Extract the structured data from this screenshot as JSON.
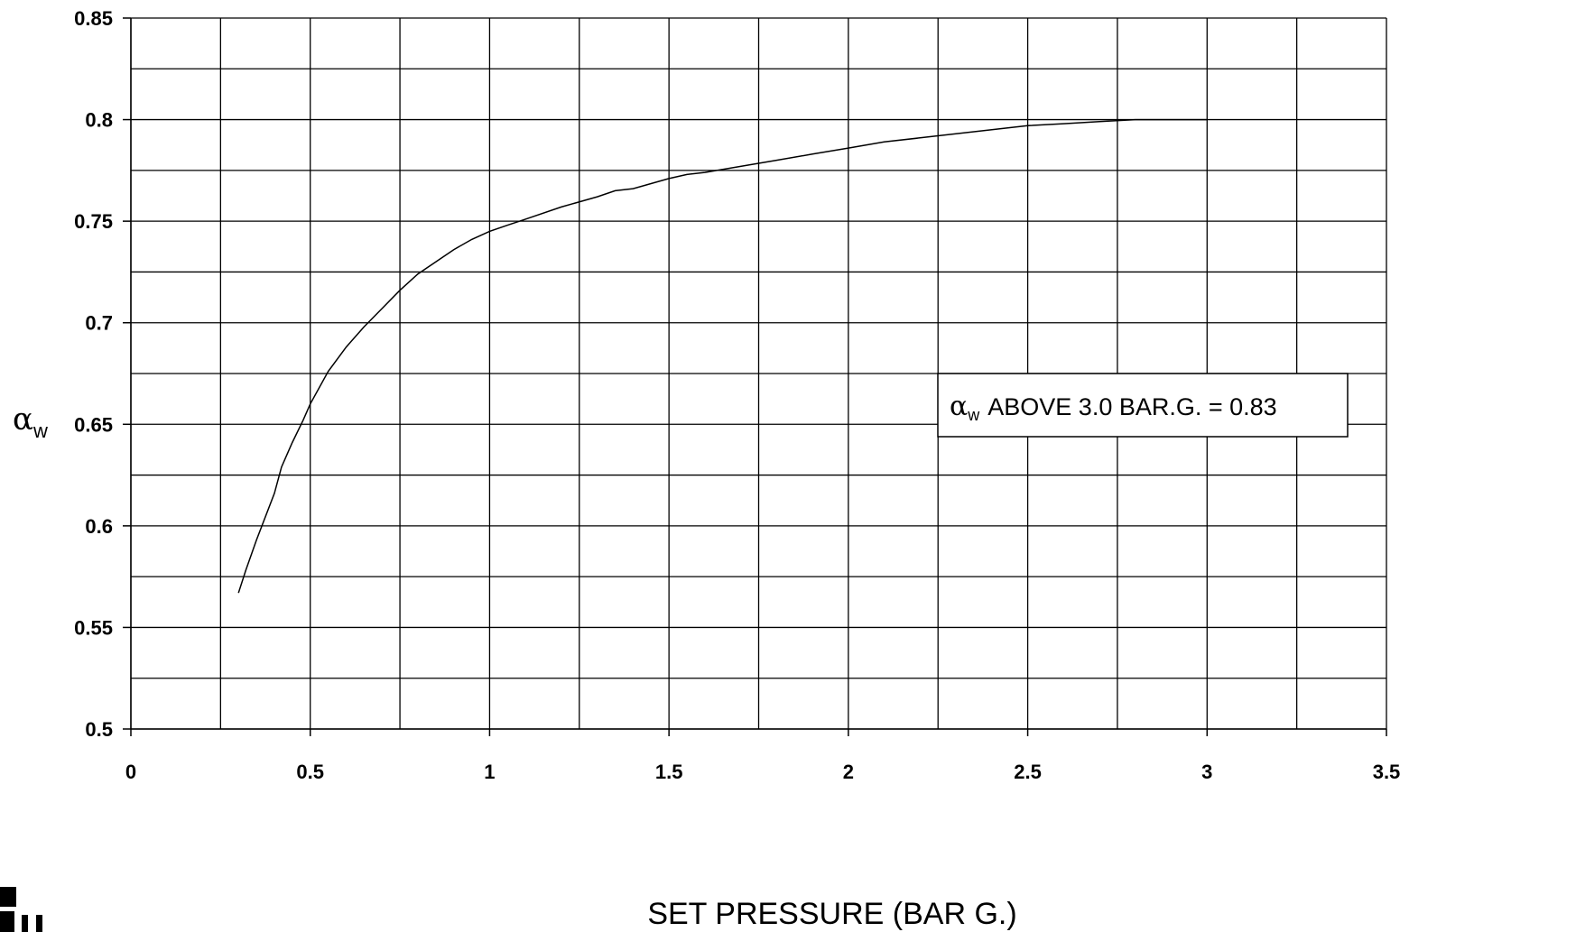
{
  "chart_data": {
    "type": "line",
    "xlabel": "SET PRESSURE (BAR G.)",
    "ylabel": {
      "symbol": "α",
      "subscript": "w"
    },
    "xlim": [
      0,
      3.5
    ],
    "ylim": [
      0.5,
      0.85
    ],
    "x_ticks": [
      0,
      0.5,
      1,
      1.5,
      2,
      2.5,
      3,
      3.5
    ],
    "x_tick_labels": [
      "0",
      "0.5",
      "1",
      "1.5",
      "2",
      "2.5",
      "3",
      "3.5"
    ],
    "x_grid_step": 0.25,
    "y_ticks": [
      0.5,
      0.55,
      0.6,
      0.65,
      0.7,
      0.75,
      0.8,
      0.85
    ],
    "y_tick_labels": [
      "0.5",
      "0.55",
      "0.6",
      "0.65",
      "0.7",
      "0.75",
      "0.8",
      "0.85"
    ],
    "y_grid_step": 0.025,
    "grid": true,
    "series": [
      {
        "x": [
          0.3,
          0.32,
          0.35,
          0.4,
          0.42,
          0.45,
          0.48,
          0.5,
          0.55,
          0.6,
          0.65,
          0.7,
          0.75,
          0.8,
          0.9,
          0.95,
          1.0,
          1.05,
          1.1,
          1.2,
          1.3,
          1.35,
          1.4,
          1.5,
          1.55,
          1.6,
          1.7,
          1.8,
          1.9,
          2.0,
          2.1,
          2.2,
          2.3,
          2.4,
          2.5,
          2.6,
          2.7,
          2.8,
          2.9,
          3.0
        ],
        "y": [
          0.567,
          0.578,
          0.593,
          0.616,
          0.629,
          0.641,
          0.652,
          0.66,
          0.676,
          0.688,
          0.698,
          0.707,
          0.716,
          0.724,
          0.736,
          0.741,
          0.745,
          0.748,
          0.751,
          0.757,
          0.762,
          0.765,
          0.766,
          0.771,
          0.773,
          0.774,
          0.777,
          0.78,
          0.783,
          0.786,
          0.789,
          0.791,
          0.793,
          0.795,
          0.797,
          0.798,
          0.799,
          0.8,
          0.8,
          0.8
        ]
      }
    ],
    "annotation": {
      "symbol": "α",
      "subscript": "w",
      "text": "ABOVE 3.0 BAR.G. = 0.83"
    }
  }
}
